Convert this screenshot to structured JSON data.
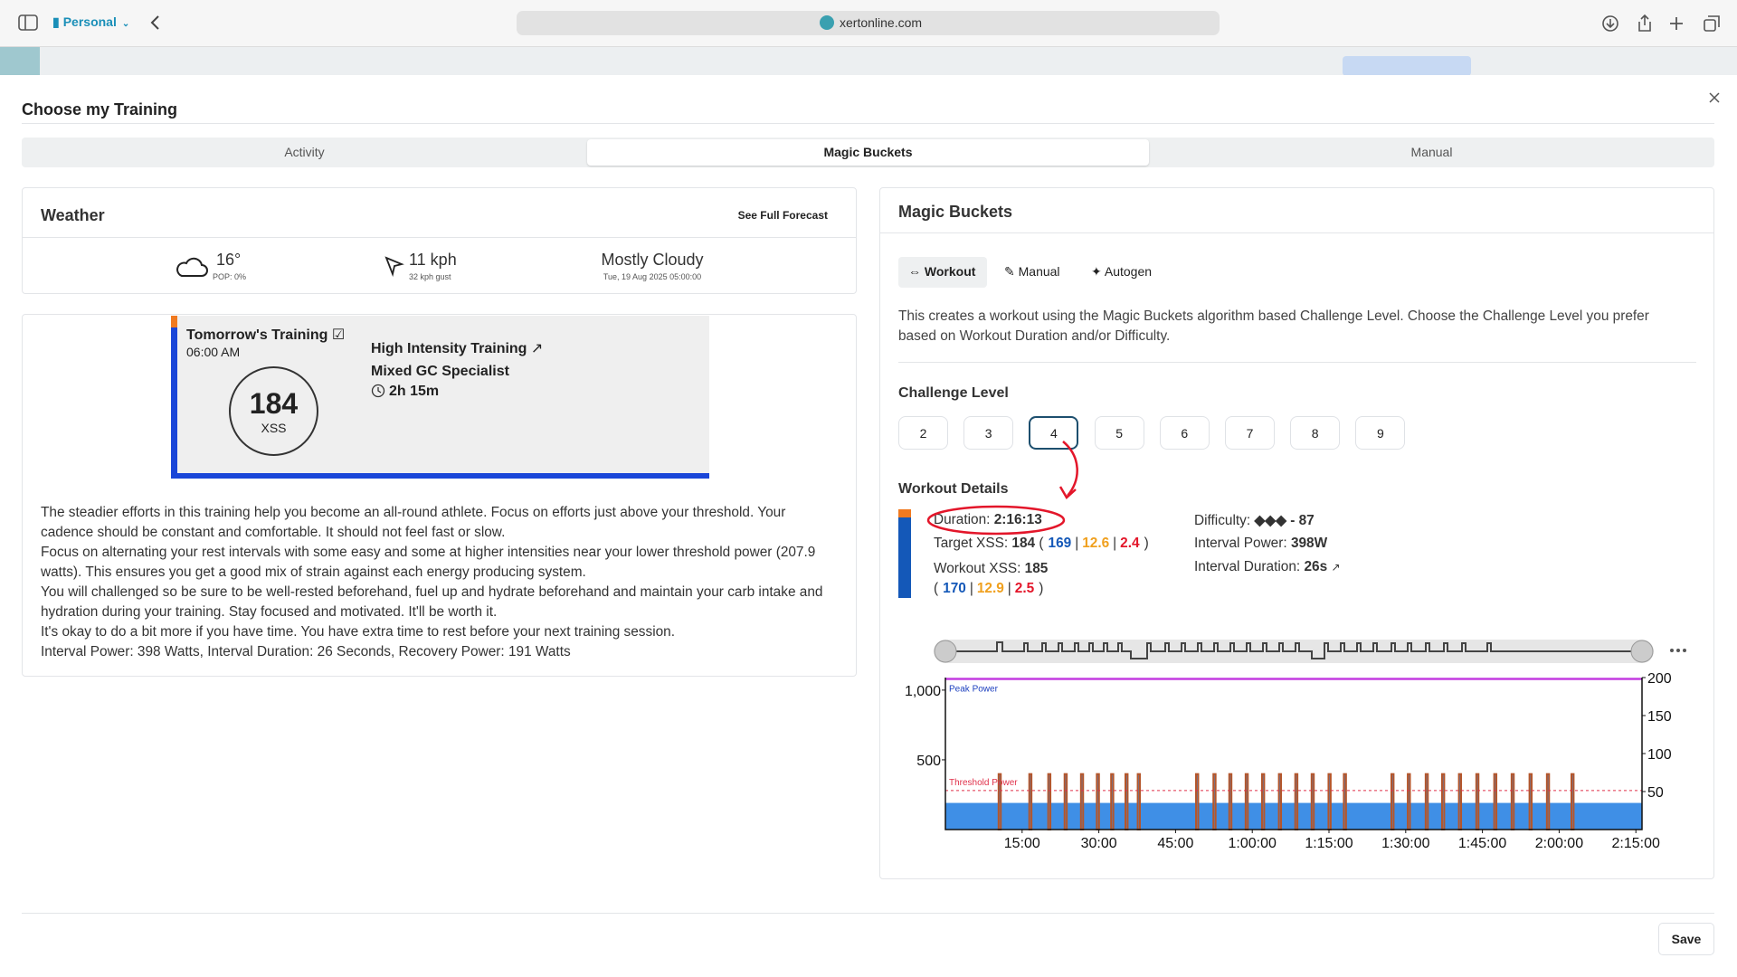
{
  "browser": {
    "profile": "Personal",
    "url": "xertonline.com"
  },
  "modal": {
    "title": "Choose my Training",
    "tabs": [
      "Activity",
      "Magic Buckets",
      "Manual"
    ],
    "save": "Save"
  },
  "weather": {
    "title": "Weather",
    "link": "See Full Forecast",
    "temperature": "16°",
    "pop": "POP: 0%",
    "wind": "11 kph",
    "gust": "32 kph gust",
    "condition": "Mostly Cloudy",
    "time": "Tue, 19 Aug 2025 05:00:00"
  },
  "training": {
    "heading": "Tomorrow's Training",
    "time": "06:00 AM",
    "xss": "184",
    "xss_label": "XSS",
    "workout": "High Intensity Training",
    "athlete_type": "Mixed GC Specialist",
    "duration": "2h 15m",
    "description": [
      "The steadier efforts in this training help you become an all-round athlete. Focus on efforts just above your threshold. Your cadence should be constant and comfortable. It should not feel fast or slow.",
      "Focus on alternating your rest intervals with some easy and some at higher intensities near your lower threshold power (207.9 watts). This ensures you get a good mix of strain against each energy producing system.",
      "You will challenged so be sure to be well-rested beforehand, fuel up and hydrate beforehand and maintain your carb intake and hydration during your training. Stay focused and motivated. It'll be worth it.",
      "It's okay to do a bit more if you have time. You have extra time to rest before your next training session.",
      "Interval Power: 398 Watts, Interval Duration: 26 Seconds, Recovery Power: 191 Watts"
    ]
  },
  "magic_buckets": {
    "title": "Magic Buckets",
    "modes": [
      "Workout",
      "Manual",
      "Autogen"
    ],
    "intro": "This creates a workout using the Magic Buckets algorithm based Challenge Level. Choose the Challenge Level you prefer based on Workout Duration and/or Difficulty.",
    "challenge_label": "Challenge Level",
    "levels": [
      "2",
      "3",
      "4",
      "5",
      "6",
      "7",
      "8",
      "9"
    ],
    "selected": "4",
    "details_label": "Workout Details",
    "duration": {
      "label": "Duration:",
      "value": "2:16:13"
    },
    "target_xss": {
      "label": "Target XSS:",
      "total": "184",
      "open": "(",
      "parts": [
        "169",
        "12.6",
        "2.4"
      ],
      "sep": "|",
      "close": ")"
    },
    "workout_xss": {
      "label": "Workout XSS:",
      "total": "185",
      "open": "(",
      "parts": [
        "170",
        "12.9",
        "2.5"
      ],
      "sep": "|",
      "close": ")"
    },
    "part_colors": [
      "#1458b8",
      "#f0a01e",
      "#e3162a"
    ],
    "difficulty": {
      "label": "Difficulty:",
      "value": "◆◆◆ - 87"
    },
    "interval_power": {
      "label": "Interval Power:",
      "value": "398W"
    },
    "interval_duration": {
      "label": "Interval Duration:",
      "value": "26s"
    }
  },
  "workout_chart": {
    "type": "workout",
    "xlim": [
      0,
      136.2
    ],
    "xticks": [
      {
        "value": 15,
        "label": "15:00"
      },
      {
        "value": 30,
        "label": "30:00"
      },
      {
        "value": 45,
        "label": "45:00"
      },
      {
        "value": 60,
        "label": "1:00:00"
      },
      {
        "value": 75,
        "label": "1:15:00"
      },
      {
        "value": 90,
        "label": "1:30:00"
      },
      {
        "value": 105,
        "label": "1:45:00"
      },
      {
        "value": 120,
        "label": "2:00:00"
      },
      {
        "value": 135,
        "label": "2:15:00"
      }
    ],
    "ylim": [
      0,
      1090
    ],
    "yticks": [
      500,
      {
        "value": 1000,
        "label": "1,000"
      }
    ],
    "y2lim": [
      0,
      200
    ],
    "y2ticks": [
      50,
      100,
      150,
      200
    ],
    "peak_power_label": "Peak Power",
    "threshold_label": "Threshold Power",
    "peak_power": 1080,
    "threshold_power": 280,
    "recovery_power": 191,
    "interval_power": 398,
    "interval_minutes": 0.43,
    "interval_starts": [
      10.4,
      16.4,
      20.1,
      23.3,
      26.5,
      29.6,
      32.4,
      35.2,
      37.6,
      49.0,
      52.4,
      55.5,
      58.7,
      61.9,
      65.2,
      68.4,
      71.6,
      74.9,
      77.9,
      87.2,
      90.4,
      93.9,
      97.1,
      100.4,
      103.8,
      107.3,
      110.7,
      114.2,
      117.6,
      122.4
    ],
    "colors": {
      "area": "#3f8fe6",
      "interval": "#b5562a",
      "peak": "#c33be0",
      "threshold": "#e0304a"
    }
  }
}
